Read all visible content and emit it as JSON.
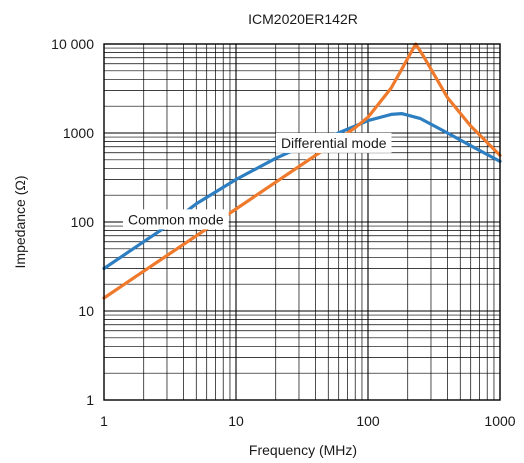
{
  "chart_data": {
    "type": "line",
    "title": "ICM2020ER142R",
    "xlabel": "Frequency (MHz)",
    "ylabel": "Impedance (Ω)",
    "x_scale": "log",
    "y_scale": "log",
    "xlim": [
      1,
      1000
    ],
    "ylim": [
      1,
      10000
    ],
    "grid": true,
    "x_ticks": [
      1,
      10,
      100,
      1000
    ],
    "x_tick_labels": [
      "1",
      "10",
      "100",
      "1000"
    ],
    "y_ticks": [
      1,
      10,
      100,
      1000,
      10000
    ],
    "y_tick_labels": [
      "1",
      "10",
      "100",
      "1000",
      "10 000"
    ],
    "series": [
      {
        "name": "Common mode",
        "color": "#2e7fc2",
        "x": [
          1,
          2,
          3,
          5,
          10,
          20,
          30,
          50,
          80,
          100,
          150,
          180,
          250,
          400,
          600,
          1000
        ],
        "y": [
          30,
          60,
          90,
          160,
          300,
          520,
          680,
          900,
          1200,
          1380,
          1620,
          1650,
          1450,
          1000,
          720,
          480
        ]
      },
      {
        "name": "Differential mode",
        "color": "#f07a2c",
        "x": [
          1,
          2,
          3,
          5,
          10,
          20,
          30,
          50,
          80,
          100,
          150,
          190,
          230,
          260,
          400,
          600,
          1000
        ],
        "y": [
          14,
          28,
          42,
          70,
          140,
          280,
          420,
          700,
          1150,
          1500,
          3200,
          6000,
          10000,
          7500,
          2500,
          1200,
          560
        ]
      }
    ],
    "annotations": [
      {
        "text": "Common mode",
        "series": "Common mode",
        "x": 3.5
      },
      {
        "text": "Differential mode",
        "series": "Differential mode",
        "x": 55
      }
    ]
  }
}
